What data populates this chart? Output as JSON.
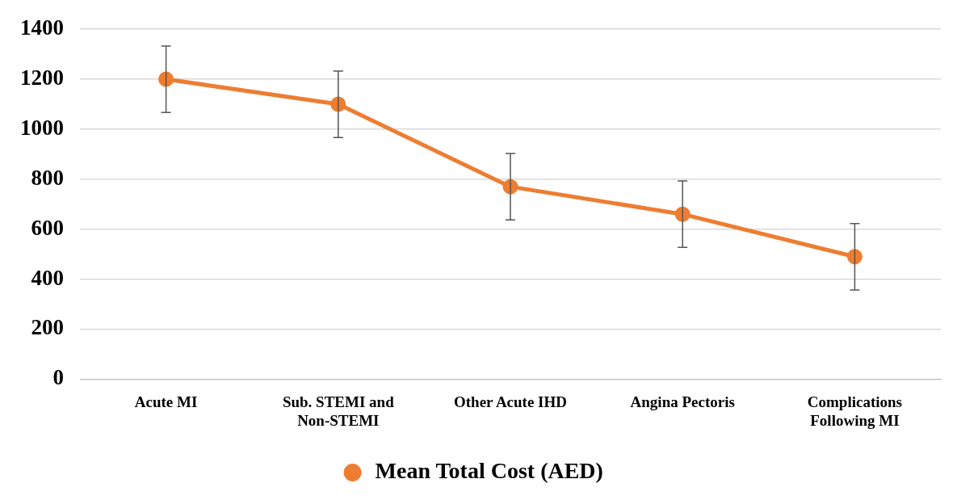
{
  "chart_data": {
    "type": "line",
    "categories": [
      "Acute MI",
      "Sub. STEMI and Non-STEMI",
      "Other Acute IHD",
      "Angina Pectoris",
      "Complications Following MI"
    ],
    "series": [
      {
        "name": "Mean Total Cost (AED)",
        "color": "#ed7d31",
        "values": [
          1200,
          1100,
          770,
          660,
          490
        ],
        "errors": [
          133,
          133,
          133,
          133,
          133
        ]
      }
    ],
    "ylim": [
      0,
      1400
    ],
    "yticks": [
      0,
      200,
      400,
      600,
      800,
      1000,
      1200,
      1400
    ],
    "grid": "y",
    "legend": "bottom",
    "marker": "circle",
    "line_style": "solid"
  }
}
